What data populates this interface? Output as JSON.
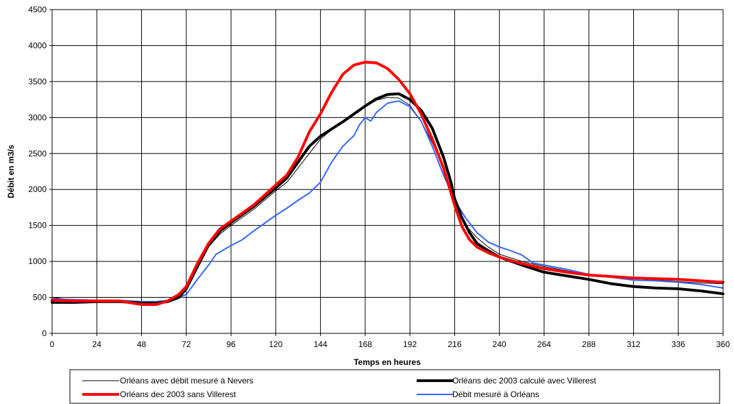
{
  "chart_data": {
    "type": "line",
    "title": "",
    "xlabel": "Temps en heures",
    "ylabel": "Débit en m3/s",
    "xlim": [
      0,
      360
    ],
    "ylim": [
      0,
      4500
    ],
    "xticks": [
      0,
      24,
      48,
      72,
      96,
      120,
      144,
      168,
      192,
      216,
      240,
      264,
      288,
      312,
      336,
      360
    ],
    "yticks": [
      0,
      500,
      1000,
      1500,
      2000,
      2500,
      3000,
      3500,
      4000,
      4500
    ],
    "grid": true,
    "legend_position": "bottom",
    "series": [
      {
        "name": "Orléans avec débit mesuré à Nevers",
        "color": "#000000",
        "style": "thin",
        "points": [
          [
            0,
            500
          ],
          [
            12,
            460
          ],
          [
            24,
            460
          ],
          [
            36,
            460
          ],
          [
            48,
            430
          ],
          [
            60,
            440
          ],
          [
            66,
            480
          ],
          [
            72,
            600
          ],
          [
            78,
            900
          ],
          [
            84,
            1200
          ],
          [
            90,
            1380
          ],
          [
            96,
            1500
          ],
          [
            108,
            1720
          ],
          [
            120,
            1980
          ],
          [
            126,
            2100
          ],
          [
            132,
            2300
          ],
          [
            138,
            2500
          ],
          [
            144,
            2700
          ],
          [
            150,
            2830
          ],
          [
            156,
            2940
          ],
          [
            162,
            3050
          ],
          [
            168,
            3150
          ],
          [
            174,
            3240
          ],
          [
            180,
            3280
          ],
          [
            186,
            3270
          ],
          [
            192,
            3170
          ],
          [
            198,
            2950
          ],
          [
            204,
            2650
          ],
          [
            210,
            2300
          ],
          [
            216,
            1800
          ],
          [
            222,
            1500
          ],
          [
            228,
            1330
          ],
          [
            234,
            1200
          ],
          [
            240,
            1100
          ],
          [
            252,
            1000
          ],
          [
            264,
            930
          ],
          [
            276,
            870
          ],
          [
            288,
            820
          ],
          [
            300,
            780
          ],
          [
            312,
            760
          ],
          [
            324,
            740
          ],
          [
            336,
            720
          ],
          [
            348,
            700
          ],
          [
            360,
            690
          ]
        ]
      },
      {
        "name": "Orléans dec 2003 calculé avec Villerest",
        "color": "#000000",
        "style": "thick",
        "points": [
          [
            0,
            430
          ],
          [
            12,
            430
          ],
          [
            24,
            440
          ],
          [
            36,
            440
          ],
          [
            48,
            420
          ],
          [
            56,
            420
          ],
          [
            62,
            440
          ],
          [
            68,
            500
          ],
          [
            72,
            620
          ],
          [
            78,
            930
          ],
          [
            84,
            1230
          ],
          [
            90,
            1420
          ],
          [
            96,
            1540
          ],
          [
            108,
            1760
          ],
          [
            120,
            2020
          ],
          [
            126,
            2160
          ],
          [
            132,
            2380
          ],
          [
            138,
            2600
          ],
          [
            144,
            2740
          ],
          [
            150,
            2840
          ],
          [
            156,
            2940
          ],
          [
            162,
            3050
          ],
          [
            168,
            3160
          ],
          [
            174,
            3260
          ],
          [
            180,
            3320
          ],
          [
            186,
            3330
          ],
          [
            192,
            3250
          ],
          [
            198,
            3100
          ],
          [
            204,
            2850
          ],
          [
            210,
            2450
          ],
          [
            214,
            2100
          ],
          [
            216,
            1870
          ],
          [
            220,
            1600
          ],
          [
            224,
            1400
          ],
          [
            228,
            1250
          ],
          [
            234,
            1150
          ],
          [
            240,
            1060
          ],
          [
            252,
            950
          ],
          [
            264,
            850
          ],
          [
            276,
            800
          ],
          [
            288,
            750
          ],
          [
            300,
            690
          ],
          [
            312,
            650
          ],
          [
            324,
            630
          ],
          [
            336,
            620
          ],
          [
            348,
            590
          ],
          [
            360,
            550
          ]
        ]
      },
      {
        "name": "Orléans dec 2003 sans Villerest",
        "color": "#ff0000",
        "style": "thick",
        "points": [
          [
            0,
            460
          ],
          [
            12,
            450
          ],
          [
            24,
            450
          ],
          [
            36,
            450
          ],
          [
            48,
            400
          ],
          [
            56,
            400
          ],
          [
            62,
            450
          ],
          [
            68,
            540
          ],
          [
            72,
            650
          ],
          [
            78,
            970
          ],
          [
            84,
            1250
          ],
          [
            90,
            1450
          ],
          [
            96,
            1560
          ],
          [
            108,
            1780
          ],
          [
            120,
            2060
          ],
          [
            126,
            2200
          ],
          [
            132,
            2450
          ],
          [
            138,
            2800
          ],
          [
            144,
            3050
          ],
          [
            150,
            3350
          ],
          [
            156,
            3600
          ],
          [
            162,
            3730
          ],
          [
            168,
            3770
          ],
          [
            174,
            3760
          ],
          [
            180,
            3680
          ],
          [
            186,
            3530
          ],
          [
            192,
            3330
          ],
          [
            198,
            3050
          ],
          [
            204,
            2700
          ],
          [
            210,
            2300
          ],
          [
            216,
            1780
          ],
          [
            220,
            1480
          ],
          [
            224,
            1300
          ],
          [
            228,
            1200
          ],
          [
            234,
            1120
          ],
          [
            240,
            1060
          ],
          [
            252,
            970
          ],
          [
            264,
            900
          ],
          [
            276,
            850
          ],
          [
            288,
            810
          ],
          [
            300,
            790
          ],
          [
            312,
            770
          ],
          [
            324,
            760
          ],
          [
            336,
            750
          ],
          [
            348,
            730
          ],
          [
            360,
            710
          ]
        ]
      },
      {
        "name": "Débit mesuré à Orléans",
        "color": "#3366ff",
        "style": "medium",
        "points": [
          [
            0,
            480
          ],
          [
            12,
            470
          ],
          [
            24,
            460
          ],
          [
            36,
            460
          ],
          [
            48,
            440
          ],
          [
            56,
            440
          ],
          [
            62,
            460
          ],
          [
            68,
            500
          ],
          [
            72,
            540
          ],
          [
            78,
            750
          ],
          [
            84,
            950
          ],
          [
            88,
            1100
          ],
          [
            92,
            1160
          ],
          [
            96,
            1220
          ],
          [
            102,
            1300
          ],
          [
            108,
            1420
          ],
          [
            114,
            1530
          ],
          [
            120,
            1640
          ],
          [
            126,
            1740
          ],
          [
            132,
            1850
          ],
          [
            138,
            1950
          ],
          [
            144,
            2100
          ],
          [
            150,
            2380
          ],
          [
            156,
            2600
          ],
          [
            162,
            2750
          ],
          [
            165,
            2900
          ],
          [
            168,
            3000
          ],
          [
            171,
            2950
          ],
          [
            174,
            3070
          ],
          [
            180,
            3200
          ],
          [
            186,
            3230
          ],
          [
            192,
            3150
          ],
          [
            198,
            2950
          ],
          [
            204,
            2600
          ],
          [
            210,
            2200
          ],
          [
            216,
            1850
          ],
          [
            222,
            1600
          ],
          [
            228,
            1400
          ],
          [
            234,
            1270
          ],
          [
            240,
            1200
          ],
          [
            246,
            1150
          ],
          [
            252,
            1090
          ],
          [
            258,
            980
          ],
          [
            264,
            950
          ],
          [
            276,
            890
          ],
          [
            288,
            820
          ],
          [
            300,
            780
          ],
          [
            312,
            740
          ],
          [
            324,
            730
          ],
          [
            336,
            710
          ],
          [
            348,
            680
          ],
          [
            360,
            630
          ]
        ]
      }
    ]
  }
}
